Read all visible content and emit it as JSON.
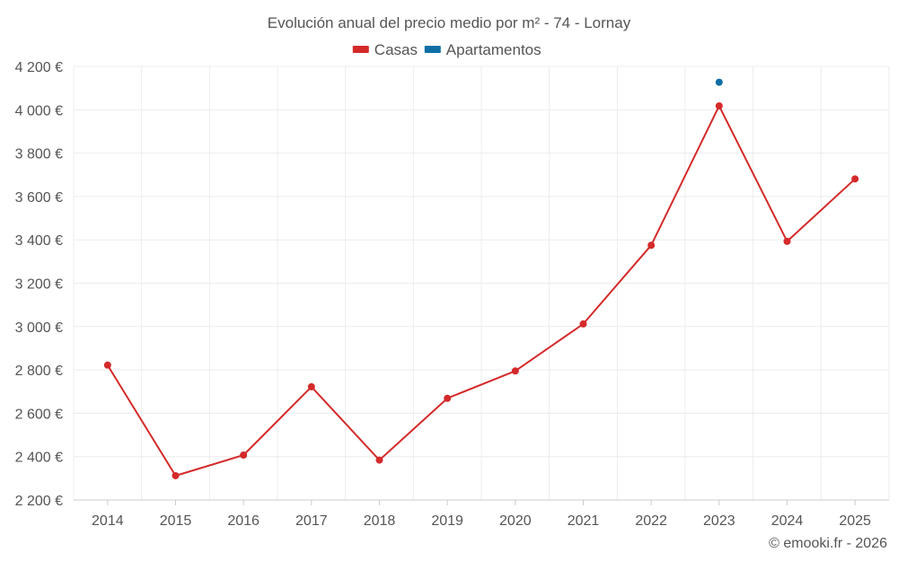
{
  "chart_data": {
    "type": "line",
    "title": "Evolución anual del precio medio por m² - 74 - Lornay",
    "categories": [
      "2014",
      "2015",
      "2016",
      "2017",
      "2018",
      "2019",
      "2020",
      "2021",
      "2022",
      "2023",
      "2024",
      "2025"
    ],
    "series": [
      {
        "name": "Casas",
        "color": "#d42a2a",
        "values": [
          2822,
          2312,
          2407,
          2722,
          2384,
          2669,
          2795,
          3012,
          3375,
          4018,
          3393,
          3681
        ]
      },
      {
        "name": "Apartamentos",
        "color": "#0f6fa5",
        "values": [
          null,
          null,
          null,
          null,
          null,
          null,
          null,
          null,
          null,
          4127,
          null,
          null
        ]
      }
    ],
    "ylim": [
      2200,
      4200
    ],
    "yticks": [
      2200,
      2400,
      2600,
      2800,
      3000,
      3200,
      3400,
      3600,
      3800,
      4000,
      4200
    ],
    "ytick_labels": [
      "2 200 €",
      "2 400 €",
      "2 600 €",
      "2 800 €",
      "3 000 €",
      "3 200 €",
      "3 400 €",
      "3 600 €",
      "3 800 €",
      "4 000 €",
      "4 200 €"
    ],
    "xlabel": "",
    "ylabel": "",
    "grid": true,
    "legend_position": "top-center"
  },
  "credit": "© emooki.fr - 2026"
}
